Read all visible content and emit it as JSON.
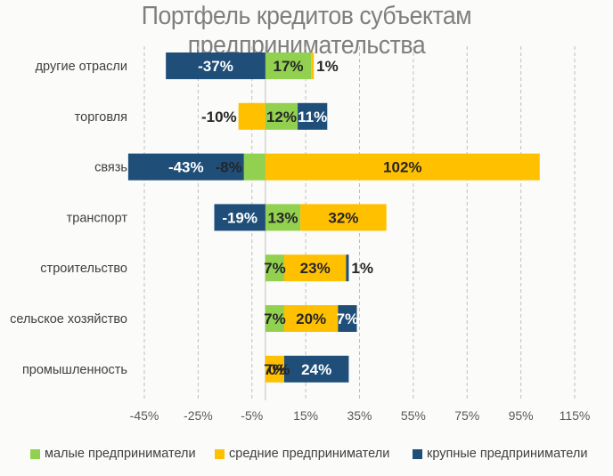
{
  "chart_data": {
    "type": "bar",
    "orientation": "horizontal",
    "stacked": true,
    "title": "Портфель кредитов субъектам предпринимательства",
    "categories": [
      "другие отрасли",
      "торговля",
      "связь",
      "транспорт",
      "строительство",
      "сельское хозяйство",
      "промышленность"
    ],
    "series": [
      {
        "name": "малые предприниматели",
        "color": "#92d050",
        "values": [
          17,
          12,
          -8,
          13,
          7,
          7,
          0
        ],
        "labels": [
          "17%",
          "12%",
          "-8%",
          "13%",
          "7%",
          "7%",
          "0%"
        ]
      },
      {
        "name": "средние предприниматели",
        "color": "#ffc000",
        "values": [
          1,
          -10,
          102,
          32,
          23,
          20,
          7
        ],
        "labels": [
          "1%",
          "-10%",
          "102%",
          "32%",
          "23%",
          "20%",
          "7%"
        ]
      },
      {
        "name": "крупные предприниматели",
        "color": "#1f4e79",
        "values": [
          -37,
          11,
          -43,
          -19,
          1,
          7,
          24
        ],
        "labels": [
          "-37%",
          "11%",
          "-43%",
          "-19%",
          "1%",
          "7%",
          "24%"
        ]
      }
    ],
    "xlim": [
      -45,
      115
    ],
    "xticks": [
      "-45%",
      "-25%",
      "-5%",
      "15%",
      "35%",
      "55%",
      "75%",
      "95%",
      "115%"
    ],
    "xtick_values": [
      -45,
      -25,
      -5,
      15,
      35,
      55,
      75,
      95,
      115
    ],
    "grid": "vertical dashed",
    "legend": "bottom"
  }
}
